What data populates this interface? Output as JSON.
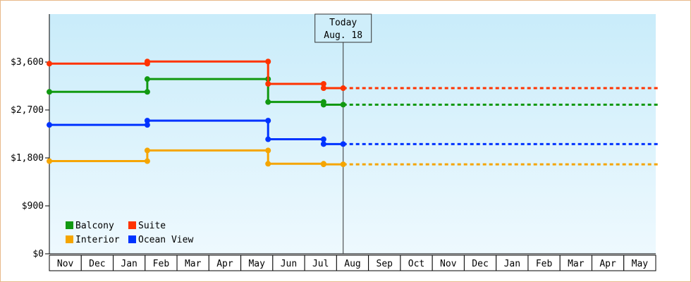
{
  "chart_data": {
    "type": "line",
    "step": true,
    "y_unit_prefix": "$",
    "ylim": [
      0,
      4500
    ],
    "yticks": [
      0,
      900,
      1800,
      2700,
      3600
    ],
    "ytick_labels": [
      "$0",
      "$900",
      "$1,800",
      "$2,700",
      "$3,600"
    ],
    "month_labels": [
      "Nov",
      "Dec",
      "Jan",
      "Feb",
      "Mar",
      "Apr",
      "May",
      "Jun",
      "Jul",
      "Aug",
      "Sep",
      "Oct",
      "Nov",
      "Dec",
      "Jan",
      "Feb",
      "Mar",
      "Apr",
      "May"
    ],
    "x_unit": "month index from start of Nov",
    "today": {
      "x": 9.0,
      "line1": "Today",
      "line2": "Aug. 18"
    },
    "grid": false,
    "legend_position": "bottom-left",
    "series": [
      {
        "name": "Balcony",
        "color": "#119911",
        "points": [
          [
            0.0,
            3040
          ],
          [
            3.0,
            3040
          ],
          [
            3.0,
            3280
          ],
          [
            6.7,
            3280
          ],
          [
            6.7,
            2850
          ],
          [
            8.4,
            2850
          ],
          [
            8.4,
            2800
          ],
          [
            9.0,
            2800
          ]
        ],
        "projection_to": 18.7
      },
      {
        "name": "Suite",
        "color": "#ff3300",
        "points": [
          [
            0.0,
            3570
          ],
          [
            3.0,
            3570
          ],
          [
            3.0,
            3610
          ],
          [
            6.7,
            3610
          ],
          [
            6.7,
            3190
          ],
          [
            8.4,
            3190
          ],
          [
            8.4,
            3110
          ],
          [
            9.0,
            3110
          ]
        ],
        "projection_to": 18.7
      },
      {
        "name": "Interior",
        "color": "#f5a500",
        "points": [
          [
            0.0,
            1740
          ],
          [
            3.0,
            1740
          ],
          [
            3.0,
            1940
          ],
          [
            6.7,
            1940
          ],
          [
            6.7,
            1690
          ],
          [
            8.4,
            1690
          ],
          [
            8.4,
            1680
          ],
          [
            9.0,
            1680
          ]
        ],
        "projection_to": 18.7
      },
      {
        "name": "Ocean View",
        "color": "#0033ff",
        "points": [
          [
            0.0,
            2420
          ],
          [
            3.0,
            2420
          ],
          [
            3.0,
            2500
          ],
          [
            6.7,
            2500
          ],
          [
            6.7,
            2150
          ],
          [
            8.4,
            2150
          ],
          [
            8.4,
            2060
          ],
          [
            9.0,
            2060
          ]
        ],
        "projection_to": 18.7
      }
    ],
    "legend_order": [
      "Balcony",
      "Suite",
      "Interior",
      "Ocean View"
    ]
  }
}
